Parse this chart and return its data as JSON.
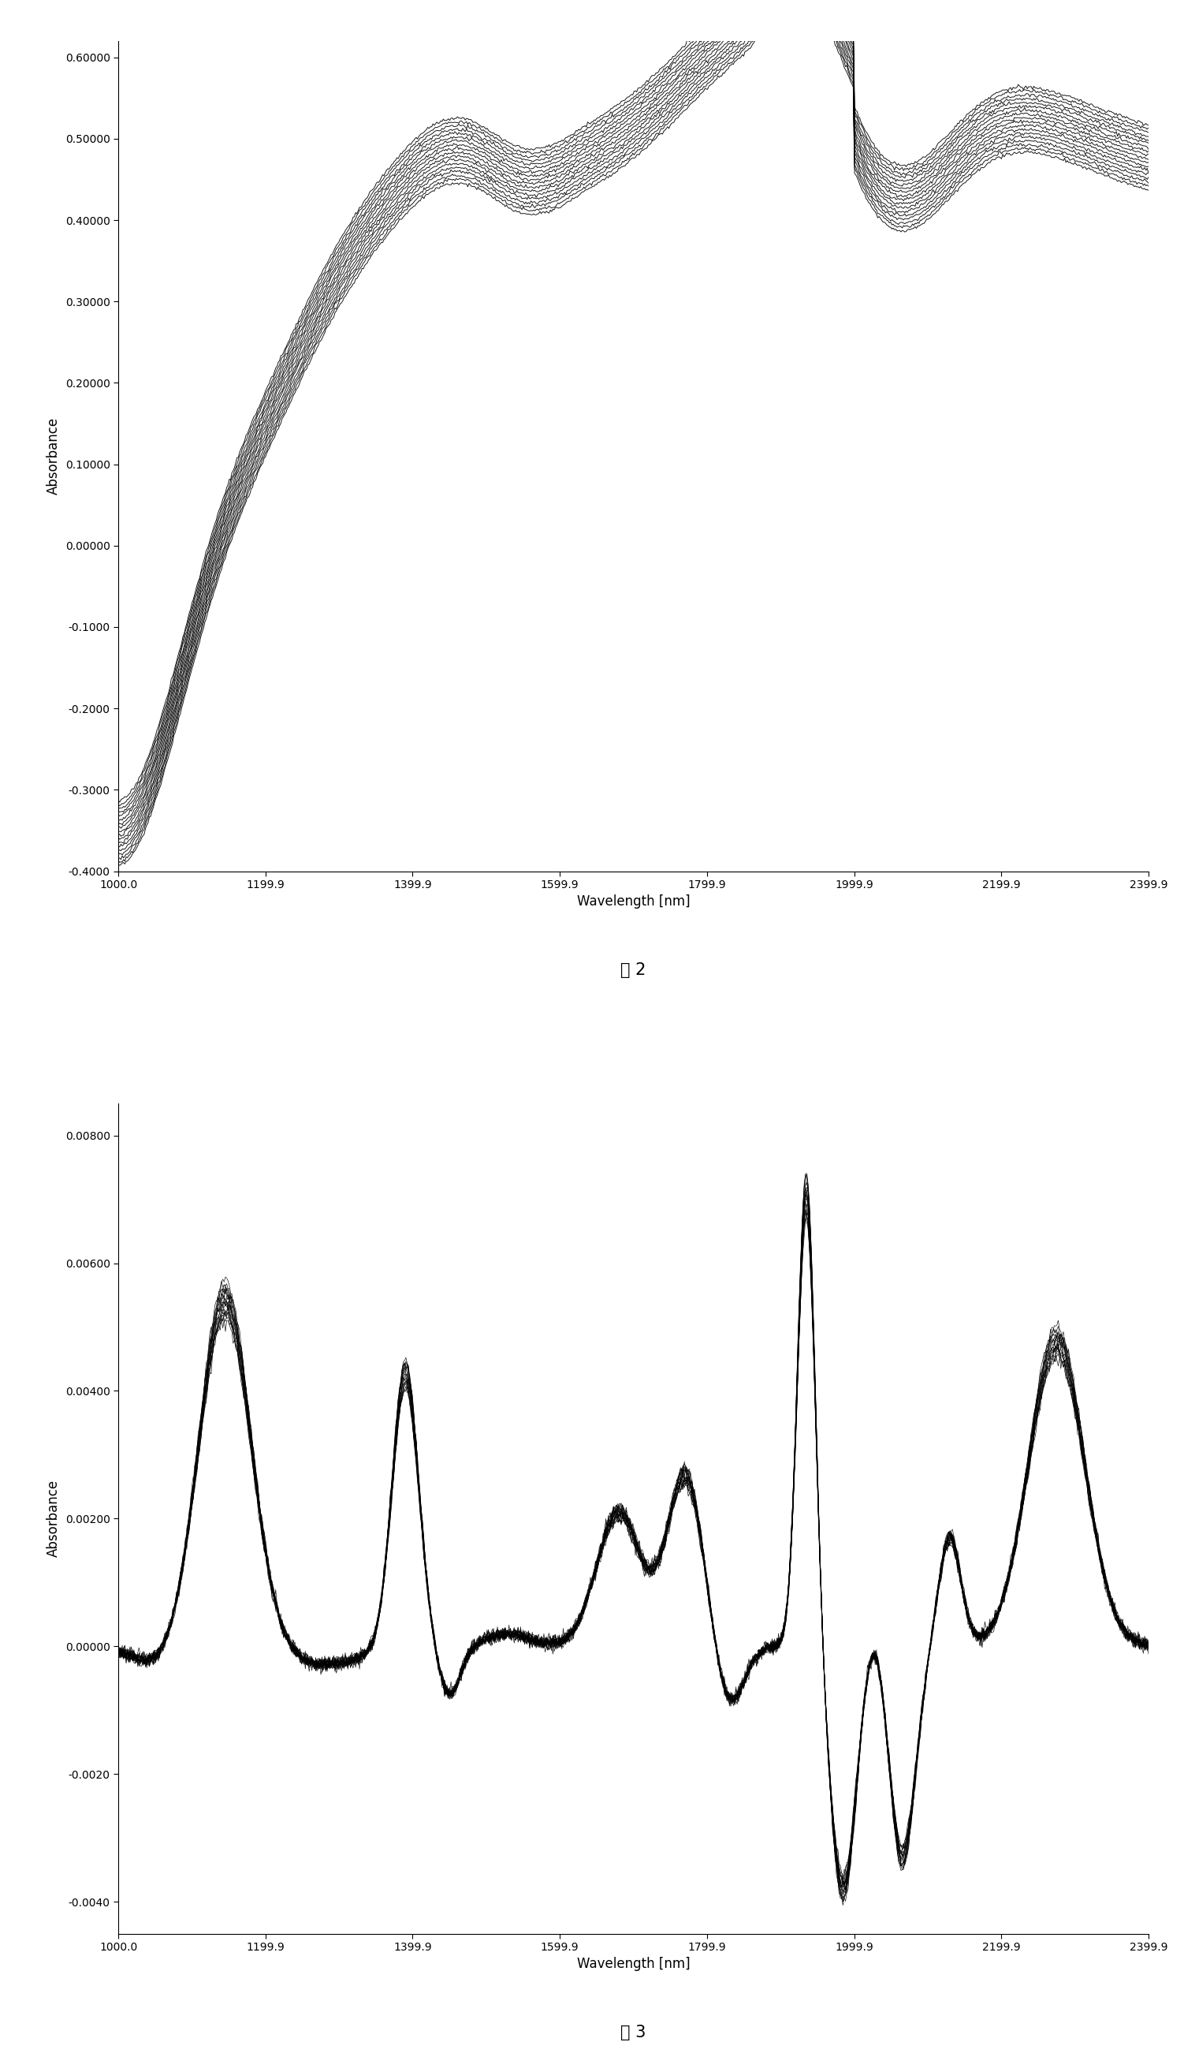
{
  "fig2": {
    "title": "图 2",
    "xlabel": "Wavelength [nm]",
    "ylabel": "Absorbance",
    "xlim": [
      1000.0,
      2399.9
    ],
    "ylim": [
      -0.4,
      0.62
    ],
    "yticks": [
      0.6,
      0.5,
      0.4,
      0.3,
      0.2,
      0.1,
      0.0,
      -0.1,
      -0.2,
      -0.3,
      -0.4
    ],
    "xticks": [
      1000.0,
      1199.9,
      1399.9,
      1599.9,
      1799.9,
      1999.9,
      2199.9,
      2399.9
    ],
    "ytick_labels": [
      "0.60000",
      "0.50000",
      "0.40000",
      "0.30000",
      "0.20000",
      "0.10000",
      "0.00000",
      "-0.1000",
      "-0.2000",
      "-0.3000",
      "-0.4000"
    ],
    "n_curves": 18,
    "line_color": "#000000",
    "line_width": 0.7,
    "bg_color": "#ffffff"
  },
  "fig3": {
    "title": "图 3",
    "xlabel": "Wavelength [nm]",
    "ylabel": "Absorbance",
    "xlim": [
      1000.0,
      2399.9
    ],
    "ylim": [
      -0.0045,
      0.0085
    ],
    "yticks": [
      0.008,
      0.006,
      0.004,
      0.002,
      0.0,
      -0.002,
      -0.004
    ],
    "xticks": [
      1000.0,
      1199.9,
      1399.9,
      1599.9,
      1799.9,
      1999.9,
      2199.9,
      2399.9
    ],
    "ytick_labels": [
      "0.00800",
      "0.00600",
      "0.00400",
      "0.00200",
      "0.00000",
      "-0.0020",
      "-0.0040"
    ],
    "n_curves": 20,
    "line_color": "#000000",
    "line_width": 0.5,
    "bg_color": "#ffffff"
  }
}
